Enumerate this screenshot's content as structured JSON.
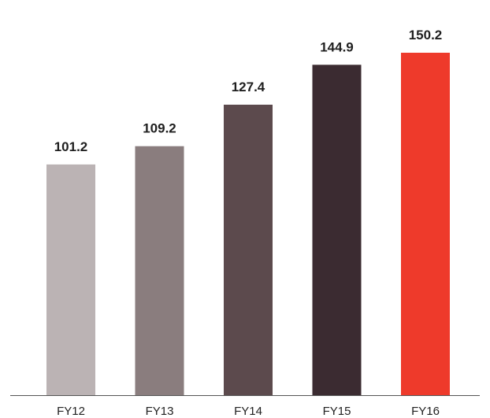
{
  "chart_data": {
    "type": "bar",
    "categories": [
      "FY12",
      "FY13",
      "FY14",
      "FY15",
      "FY16"
    ],
    "values": [
      101.2,
      109.2,
      127.4,
      144.9,
      150.2
    ],
    "value_labels": [
      "101.2",
      "109.2",
      "127.4",
      "144.9",
      "150.2"
    ],
    "title": "",
    "xlabel": "",
    "ylabel": "",
    "ylim": [
      0,
      150.2
    ],
    "grid": false,
    "legend": "none",
    "bar_colors": [
      "#bbb3b4",
      "#8a7d7e",
      "#5c4a4d",
      "#3b2b31",
      "#ee3a2b"
    ],
    "axis_color": "#555555"
  }
}
